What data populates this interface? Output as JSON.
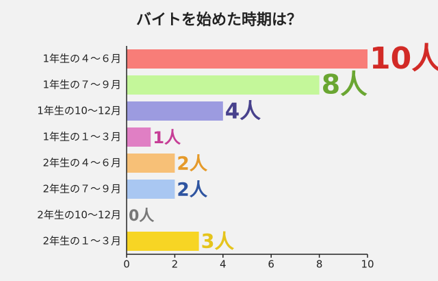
{
  "chart_data": {
    "type": "bar",
    "orientation": "horizontal",
    "title": "バイトを始めた時期は？",
    "categories": [
      "1年生の４～６月",
      "1年生の７～９月",
      "1年生の10～12月",
      "1年生の１～３月",
      "2年生の４～６月",
      "2年生の７～９月",
      "2年生の10～12月",
      "2年生の１～３月"
    ],
    "values": [
      10,
      8,
      4,
      1,
      2,
      2,
      0,
      3
    ],
    "value_labels": [
      "10人",
      "8人",
      "4人",
      "1人",
      "2人",
      "2人",
      "0人",
      "3人"
    ],
    "colors": [
      "#f87d78",
      "#c4f79a",
      "#9c9be0",
      "#e07fc4",
      "#f7c077",
      "#a9c7f2",
      "#cccccc",
      "#f7d524"
    ],
    "label_colors": [
      "#d22a26",
      "#6aa632",
      "#47418c",
      "#c63e96",
      "#e59a2a",
      "#2e54a0",
      "#777777",
      "#e5c41c"
    ],
    "xlim": [
      0,
      10
    ],
    "xticks": [
      0,
      2,
      4,
      6,
      8,
      10
    ]
  }
}
